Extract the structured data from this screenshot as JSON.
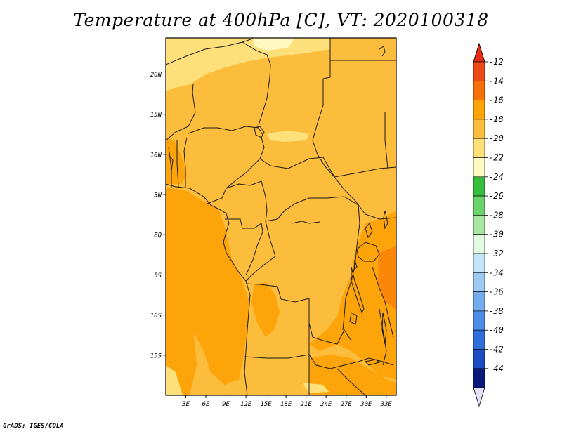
{
  "title": "Temperature at 400hPa [C], VT: 2020100318",
  "credit": "GrADS: IGES/COLA",
  "map": {
    "projection": "latlon",
    "lon_range": [
      0,
      34.5
    ],
    "lat_range": [
      -20,
      24.5
    ],
    "lat_ticks": [
      {
        "v": 20,
        "label": "20N"
      },
      {
        "v": 15,
        "label": "15N"
      },
      {
        "v": 10,
        "label": "10N"
      },
      {
        "v": 5,
        "label": "5N"
      },
      {
        "v": 0,
        "label": "EQ"
      },
      {
        "v": -5,
        "label": "5S"
      },
      {
        "v": -10,
        "label": "10S"
      },
      {
        "v": -15,
        "label": "15S"
      }
    ],
    "lon_ticks": [
      {
        "v": 3,
        "label": "3E"
      },
      {
        "v": 6,
        "label": "6E"
      },
      {
        "v": 9,
        "label": "9E"
      },
      {
        "v": 12,
        "label": "12E"
      },
      {
        "v": 15,
        "label": "15E"
      },
      {
        "v": 18,
        "label": "18E"
      },
      {
        "v": 21,
        "label": "21E"
      },
      {
        "v": 24,
        "label": "24E"
      },
      {
        "v": 27,
        "label": "27E"
      },
      {
        "v": 30,
        "label": "30E"
      },
      {
        "v": 33,
        "label": "33E"
      }
    ],
    "dominant_color": "#fcbc3c"
  },
  "colorbar": {
    "labels": [
      "-12",
      "-14",
      "-16",
      "-18",
      "-20",
      "-22",
      "-24",
      "-26",
      "-28",
      "-30",
      "-32",
      "-34",
      "-36",
      "-38",
      "-40",
      "-42",
      "-44"
    ],
    "colors": [
      "#ee4a18",
      "#f87008",
      "#fca40a",
      "#fcbc3c",
      "#fee07a",
      "#fff8c0",
      "#36be3c",
      "#6ad46a",
      "#a6e6a0",
      "#e2fae2",
      "#c4e4fa",
      "#9ccaf4",
      "#74acee",
      "#4c8ee6",
      "#2e6ed8",
      "#1a4ec2",
      "#0a1a7a"
    ],
    "top_tip_color": "#e62c14",
    "bottom_tip_color": "#e4e0fa"
  }
}
